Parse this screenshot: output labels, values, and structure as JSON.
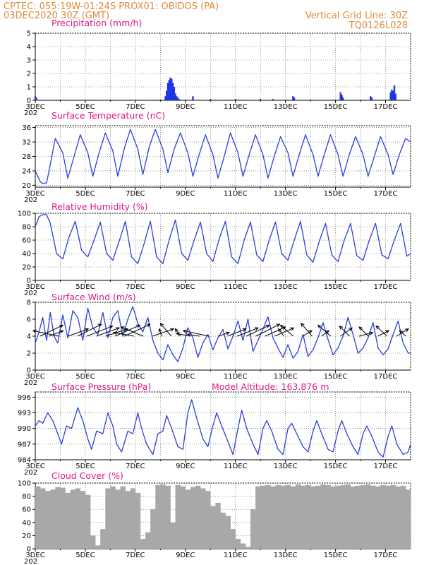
{
  "header": {
    "left_line1": "CPTEC:   055:19W-01:24S   PROX01: OBIDOS (PA)",
    "left_line2": "03DEC2020 30Z (GMT)",
    "right_line1": "Vertical Grid Line: 30Z",
    "right_line2": "TQ0126L028"
  },
  "x_axis": {
    "tick_labels": [
      "3DEC",
      "5DEC",
      "7DEC",
      "9DEC",
      "11DEC",
      "13DEC",
      "15DEC",
      "17DEC"
    ],
    "under_label": "202"
  },
  "colors": {
    "line": "#2a3ed8",
    "bar": "#1f36e0",
    "cloud": "#a8a8a8",
    "title": "#e0188a",
    "header": "#e08a3c",
    "arrow": "#000000"
  },
  "chart_data": [
    {
      "id": "precip",
      "type": "bar",
      "title": "Precipitation (mm/h)",
      "ylim": [
        0,
        5
      ],
      "yticks": [
        0,
        1,
        2,
        3,
        4,
        5
      ],
      "xlim": [
        3,
        18
      ],
      "x_unit": "day of December 2020",
      "series": [
        {
          "x": [
            3.0,
            3.04,
            8.2,
            8.25,
            8.3,
            8.35,
            8.4,
            8.45,
            8.5,
            8.55,
            8.6,
            8.65,
            8.7,
            8.75,
            9.3,
            10.0,
            11.0,
            12.0,
            12.5,
            13.3,
            13.35,
            15.2,
            15.25,
            15.3,
            16.4,
            16.45,
            17.2,
            17.25,
            17.3,
            17.35,
            17.4
          ],
          "values": [
            0.3,
            0.2,
            0.3,
            0.7,
            1.3,
            1.5,
            1.7,
            1.6,
            1.3,
            1.0,
            0.5,
            0.3,
            0.2,
            0.1,
            0.3,
            0.1,
            0.1,
            0.1,
            0.1,
            0.3,
            0.2,
            0.6,
            0.4,
            0.2,
            0.3,
            0.2,
            0.6,
            0.8,
            0.7,
            1.1,
            0.5
          ]
        }
      ]
    },
    {
      "id": "temp",
      "type": "line",
      "title": "Surface Temperature (nC)",
      "ylim": [
        19.5,
        36.5
      ],
      "yticks": [
        20,
        24,
        28,
        32,
        36
      ],
      "xlim": [
        3,
        18
      ],
      "series": [
        {
          "x": [
            3.0,
            3.1,
            3.2,
            3.3,
            3.45,
            3.55,
            3.8,
            4.1,
            4.3,
            4.55,
            4.8,
            5.1,
            5.3,
            5.55,
            5.8,
            6.1,
            6.3,
            6.55,
            6.8,
            7.1,
            7.3,
            7.55,
            7.8,
            8.1,
            8.3,
            8.55,
            8.8,
            9.1,
            9.3,
            9.55,
            9.8,
            10.1,
            10.3,
            10.55,
            10.8,
            11.1,
            11.3,
            11.55,
            11.8,
            12.1,
            12.3,
            12.55,
            12.8,
            13.1,
            13.3,
            13.55,
            13.8,
            14.1,
            14.3,
            14.55,
            14.8,
            15.1,
            15.3,
            15.55,
            15.8,
            16.1,
            16.3,
            16.55,
            16.8,
            17.1,
            17.3,
            17.55,
            17.8,
            18.0
          ],
          "values": [
            24.0,
            22.5,
            21.0,
            20.5,
            20.7,
            24.0,
            33.0,
            29.0,
            22.0,
            28.0,
            34.0,
            29.0,
            22.5,
            29.0,
            34.5,
            29.5,
            22.5,
            30.0,
            35.5,
            30.0,
            23.0,
            30.5,
            35.5,
            30.0,
            23.5,
            30.0,
            34.5,
            29.0,
            22.5,
            28.5,
            34.0,
            28.5,
            22.0,
            28.0,
            34.5,
            29.0,
            22.5,
            28.5,
            34.0,
            28.5,
            22.0,
            28.0,
            33.5,
            29.0,
            22.5,
            28.5,
            34.0,
            28.5,
            22.5,
            28.5,
            34.0,
            28.5,
            22.5,
            28.5,
            33.5,
            28.5,
            22.5,
            28.0,
            33.5,
            28.5,
            23.0,
            28.5,
            33.0,
            32.0
          ]
        }
      ]
    },
    {
      "id": "rh",
      "type": "line",
      "title": "Relative Humidity (%)",
      "ylim": [
        0,
        100
      ],
      "yticks": [
        0,
        20,
        40,
        60,
        80,
        100
      ],
      "xlim": [
        3,
        18
      ],
      "series": [
        {
          "x": [
            3.0,
            3.15,
            3.3,
            3.45,
            3.6,
            3.85,
            4.1,
            4.35,
            4.6,
            4.85,
            5.1,
            5.35,
            5.6,
            5.85,
            6.1,
            6.35,
            6.6,
            6.85,
            7.1,
            7.35,
            7.6,
            7.85,
            8.1,
            8.35,
            8.6,
            8.85,
            9.1,
            9.35,
            9.6,
            9.85,
            10.1,
            10.35,
            10.6,
            10.85,
            11.1,
            11.35,
            11.6,
            11.85,
            12.1,
            12.35,
            12.6,
            12.85,
            13.1,
            13.35,
            13.6,
            13.85,
            14.1,
            14.35,
            14.6,
            14.85,
            15.1,
            15.35,
            15.6,
            15.85,
            16.1,
            16.35,
            16.6,
            16.85,
            17.1,
            17.35,
            17.6,
            17.85,
            18.0
          ],
          "values": [
            80,
            95,
            98,
            98,
            85,
            40,
            32,
            65,
            88,
            45,
            35,
            60,
            87,
            40,
            30,
            58,
            88,
            35,
            25,
            55,
            88,
            35,
            25,
            60,
            90,
            40,
            30,
            60,
            87,
            40,
            28,
            62,
            88,
            35,
            25,
            60,
            87,
            38,
            28,
            60,
            87,
            40,
            30,
            60,
            88,
            38,
            27,
            58,
            85,
            38,
            28,
            60,
            85,
            37,
            30,
            60,
            85,
            38,
            32,
            60,
            85,
            36,
            40
          ]
        }
      ]
    },
    {
      "id": "wind",
      "type": "line",
      "title": "Surface Wind (m/s)",
      "ylim": [
        0,
        8
      ],
      "yticks": [
        0,
        2,
        4,
        6,
        8
      ],
      "xlim": [
        3,
        18
      ],
      "series": [
        {
          "x": [
            3.0,
            3.15,
            3.3,
            3.45,
            3.6,
            3.75,
            3.9,
            4.1,
            4.3,
            4.5,
            4.7,
            4.9,
            5.1,
            5.3,
            5.5,
            5.7,
            5.9,
            6.1,
            6.3,
            6.5,
            6.7,
            6.9,
            7.1,
            7.3,
            7.5,
            7.7,
            7.9,
            8.1,
            8.3,
            8.5,
            8.7,
            8.9,
            9.1,
            9.3,
            9.5,
            9.7,
            9.9,
            10.1,
            10.3,
            10.5,
            10.7,
            10.9,
            11.1,
            11.3,
            11.5,
            11.7,
            11.9,
            12.1,
            12.3,
            12.5,
            12.7,
            12.9,
            13.1,
            13.3,
            13.5,
            13.7,
            13.9,
            14.1,
            14.3,
            14.5,
            14.7,
            14.9,
            15.1,
            15.3,
            15.5,
            15.7,
            15.9,
            16.1,
            16.3,
            16.5,
            16.7,
            16.9,
            17.1,
            17.3,
            17.5,
            17.7,
            17.9,
            18.0
          ],
          "values": [
            3.2,
            4.5,
            6.2,
            3.5,
            6.8,
            4.0,
            3.2,
            6.5,
            3.8,
            7.0,
            6.2,
            3.5,
            7.3,
            5.0,
            4.2,
            6.8,
            3.8,
            6.2,
            7.0,
            4.0,
            6.0,
            7.5,
            5.5,
            4.5,
            6.2,
            3.5,
            2.0,
            1.2,
            3.0,
            1.8,
            1.0,
            2.6,
            5.0,
            3.8,
            1.5,
            3.2,
            4.2,
            2.4,
            3.8,
            4.8,
            2.5,
            4.0,
            5.8,
            3.5,
            6.0,
            2.2,
            3.5,
            4.8,
            6.3,
            3.8,
            2.6,
            1.5,
            3.0,
            1.4,
            2.2,
            4.2,
            1.6,
            2.4,
            3.8,
            5.6,
            3.6,
            1.8,
            2.6,
            4.0,
            6.2,
            4.2,
            2.0,
            2.6,
            3.8,
            5.6,
            2.6,
            1.8,
            2.5,
            4.2,
            5.8,
            3.2,
            2.0,
            2.0
          ]
        }
      ],
      "vectors_u_v": [
        [
          2.5,
          1.2
        ],
        [
          1.5,
          0.6
        ],
        [
          -2.8,
          0.6
        ],
        [
          2.2,
          0.8
        ],
        [
          2.6,
          1.3
        ],
        [
          2.8,
          1.1
        ],
        [
          2.5,
          0.9
        ],
        [
          2.4,
          0.8
        ],
        [
          2.7,
          1.2
        ],
        [
          2.8,
          1.3
        ],
        [
          -2.2,
          0.4
        ],
        [
          -2.4,
          1.0
        ],
        [
          2.3,
          0.8
        ],
        [
          -0.3,
          0.8
        ],
        [
          -1.2,
          1.4
        ],
        [
          -0.6,
          0.8
        ],
        [
          -1.5,
          0.3
        ],
        [
          -1.3,
          0.2
        ],
        [
          -2.8,
          0.6
        ],
        [
          1.2,
          0.4
        ],
        [
          2.0,
          0.8
        ],
        [
          2.3,
          0.9
        ],
        [
          2.5,
          1.2
        ],
        [
          2.6,
          1.3
        ],
        [
          2.2,
          1.0
        ],
        [
          2.1,
          0.9
        ],
        [
          -0.6,
          0.8
        ],
        [
          -1.4,
          1.2
        ],
        [
          1.0,
          0.6
        ],
        [
          -1.2,
          1.4
        ],
        [
          0.8,
          0.6
        ],
        [
          -1.4,
          1.2
        ],
        [
          1.3,
          0.9
        ],
        [
          -1.1,
          1.1
        ],
        [
          1.5,
          0.4
        ],
        [
          -1.0,
          1.0
        ],
        [
          1.2,
          0.6
        ],
        [
          -1.2,
          1.1
        ],
        [
          1.3,
          0.8
        ],
        [
          -0.7,
          0.6
        ]
      ]
    },
    {
      "id": "pres",
      "type": "line",
      "title": "Surface Pressure (hPa)",
      "annotation": "Model Altitude: 163.876 m",
      "ylim": [
        984,
        997
      ],
      "yticks": [
        984,
        987,
        990,
        993,
        996
      ],
      "xlim": [
        3,
        18
      ],
      "series": [
        {
          "x": [
            3.0,
            3.15,
            3.3,
            3.5,
            3.7,
            3.9,
            4.05,
            4.25,
            4.45,
            4.7,
            4.9,
            5.1,
            5.25,
            5.45,
            5.7,
            5.9,
            6.1,
            6.25,
            6.45,
            6.7,
            6.9,
            7.1,
            7.25,
            7.45,
            7.7,
            7.9,
            8.1,
            8.25,
            8.45,
            8.7,
            8.9,
            9.1,
            9.25,
            9.45,
            9.7,
            9.9,
            10.1,
            10.25,
            10.45,
            10.7,
            10.9,
            11.1,
            11.25,
            11.45,
            11.7,
            11.9,
            12.1,
            12.25,
            12.45,
            12.7,
            12.9,
            13.1,
            13.25,
            13.45,
            13.7,
            13.9,
            14.1,
            14.25,
            14.45,
            14.7,
            14.9,
            15.1,
            15.25,
            15.45,
            15.7,
            15.9,
            16.1,
            16.25,
            16.45,
            16.7,
            16.9,
            17.1,
            17.25,
            17.45,
            17.7,
            17.9,
            18.0
          ],
          "values": [
            990.5,
            991.5,
            991.0,
            993.0,
            991.5,
            989.0,
            987.0,
            990.5,
            990.0,
            994.0,
            991.5,
            988.0,
            986.0,
            989.5,
            989.0,
            993.0,
            990.5,
            987.0,
            985.5,
            989.5,
            989.0,
            993.0,
            990.0,
            987.0,
            985.0,
            989.0,
            989.5,
            992.5,
            990.0,
            986.5,
            986.0,
            993.0,
            995.5,
            992.0,
            988.0,
            986.5,
            990.5,
            993.0,
            990.5,
            987.5,
            985.0,
            990.0,
            993.5,
            990.0,
            987.0,
            985.0,
            990.0,
            991.5,
            989.5,
            986.0,
            985.0,
            990.0,
            991.0,
            989.0,
            986.5,
            985.5,
            989.5,
            991.5,
            989.0,
            986.0,
            985.5,
            989.5,
            991.5,
            989.0,
            986.5,
            985.0,
            989.0,
            990.5,
            988.5,
            985.5,
            984.5,
            988.5,
            990.5,
            987.0,
            985.0,
            985.5,
            987.0
          ]
        }
      ]
    },
    {
      "id": "cloud",
      "type": "bar",
      "title": "Cloud Cover (%)",
      "ylim": [
        0,
        100
      ],
      "yticks": [
        0,
        20,
        40,
        60,
        80,
        100
      ],
      "xlim": [
        3,
        18
      ],
      "series": [
        {
          "x": [
            3.0,
            3.2,
            3.4,
            3.6,
            3.8,
            4.0,
            4.2,
            4.4,
            4.6,
            4.8,
            5.0,
            5.2,
            5.4,
            5.6,
            5.8,
            6.0,
            6.2,
            6.4,
            6.6,
            6.8,
            7.0,
            7.2,
            7.4,
            7.6,
            7.8,
            8.0,
            8.2,
            8.4,
            8.6,
            8.8,
            9.0,
            9.2,
            9.4,
            9.6,
            9.8,
            10.0,
            10.2,
            10.4,
            10.6,
            10.8,
            11.0,
            11.2,
            11.4,
            11.6,
            11.8,
            12.0,
            12.2,
            12.4,
            12.6,
            12.8,
            13.0,
            13.2,
            13.4,
            13.6,
            13.8,
            14.0,
            14.2,
            14.4,
            14.6,
            14.8,
            15.0,
            15.2,
            15.4,
            15.6,
            15.8,
            16.0,
            16.2,
            16.4,
            16.6,
            16.8,
            17.0,
            17.2,
            17.4,
            17.6,
            17.8
          ],
          "values": [
            95,
            92,
            88,
            90,
            94,
            93,
            85,
            90,
            92,
            88,
            82,
            20,
            5,
            30,
            92,
            95,
            90,
            95,
            88,
            92,
            85,
            15,
            25,
            60,
            97,
            98,
            96,
            40,
            97,
            95,
            90,
            94,
            96,
            92,
            88,
            65,
            70,
            55,
            50,
            30,
            15,
            8,
            3,
            60,
            95,
            96,
            97,
            95,
            97,
            96,
            97,
            95,
            98,
            96,
            97,
            95,
            96,
            98,
            97,
            95,
            96,
            97,
            98,
            95,
            96,
            97,
            98,
            96,
            95,
            97,
            96,
            97,
            95,
            96,
            90
          ]
        }
      ]
    }
  ]
}
